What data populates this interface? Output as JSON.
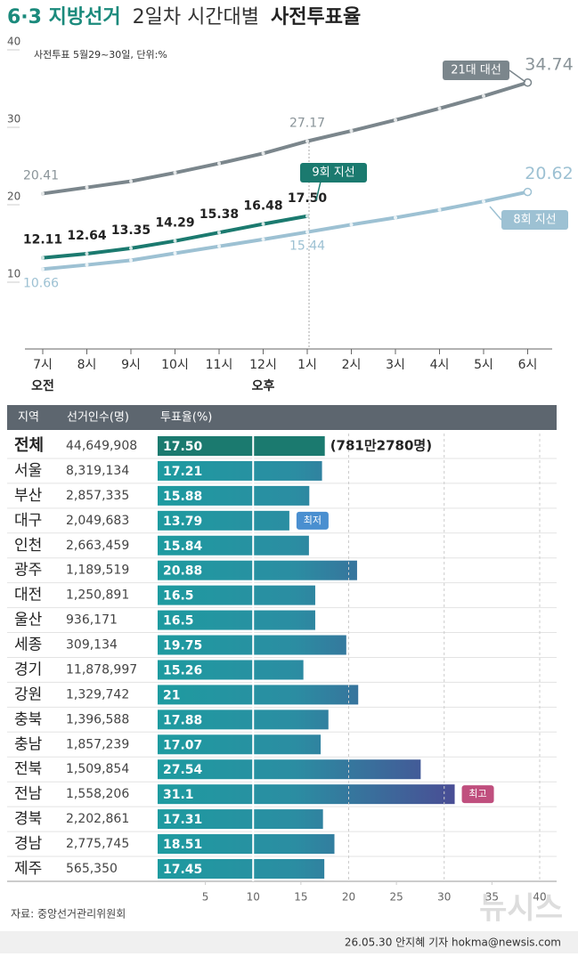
{
  "chart_data": [
    {
      "type": "line",
      "title": [
        "6·3 지방선거",
        "2일차 시간대별",
        "사전투표율"
      ],
      "subtitle": "사전투표 5월29~30일, 단위:%",
      "categories": [
        "7시",
        "8시",
        "9시",
        "10시",
        "11시",
        "12시",
        "1시",
        "2시",
        "3시",
        "4시",
        "5시",
        "6시"
      ],
      "category_sublabels": [
        "오전",
        null,
        null,
        null,
        null,
        "오후",
        null,
        null,
        null,
        null,
        null,
        null
      ],
      "ylim": [
        0,
        40
      ],
      "yticks": [
        10,
        20,
        30,
        40
      ],
      "grid": false,
      "series": [
        {
          "name": "21대 대선",
          "color": "#7b868c",
          "values": [
            20.41,
            21.2,
            22.0,
            23.1,
            24.3,
            25.6,
            27.17,
            28.5,
            29.9,
            31.4,
            33.0,
            34.74
          ],
          "value_labels": [
            "20.41",
            null,
            null,
            null,
            null,
            null,
            "27.17",
            null,
            null,
            null,
            null,
            "34.74"
          ]
        },
        {
          "name": "9회 지선",
          "color": "#1b7a6f",
          "values": [
            12.11,
            12.64,
            13.35,
            14.29,
            15.38,
            16.48,
            17.5,
            null,
            null,
            null,
            null,
            null
          ],
          "value_labels": [
            "12.11",
            "12.64",
            "13.35",
            "14.29",
            "15.38",
            "16.48",
            "17.50",
            null,
            null,
            null,
            null,
            null
          ]
        },
        {
          "name": "8회 지선",
          "color": "#9dc1d3",
          "values": [
            10.66,
            11.2,
            11.8,
            12.7,
            13.6,
            14.5,
            15.44,
            16.4,
            17.3,
            18.3,
            19.4,
            20.62
          ],
          "value_labels": [
            "10.66",
            null,
            null,
            null,
            null,
            null,
            "15.44",
            null,
            null,
            null,
            null,
            "20.62"
          ]
        }
      ]
    },
    {
      "type": "bar",
      "headers": [
        "지역",
        "선거인수(명)",
        "투표율(%)"
      ],
      "categories": [
        "전체",
        "서울",
        "부산",
        "대구",
        "인천",
        "광주",
        "대전",
        "울산",
        "세종",
        "경기",
        "강원",
        "충북",
        "충남",
        "전북",
        "전남",
        "경북",
        "경남",
        "제주"
      ],
      "voters": [
        "44,649,908",
        "8,319,134",
        "2,857,335",
        "2,049,683",
        "2,663,459",
        "1,189,519",
        "1,250,891",
        "936,171",
        "309,134",
        "11,878,997",
        "1,329,742",
        "1,396,588",
        "1,857,239",
        "1,509,854",
        "1,558,206",
        "2,202,861",
        "2,775,745",
        "565,350"
      ],
      "values": [
        17.5,
        17.21,
        15.88,
        13.79,
        15.84,
        20.88,
        16.5,
        16.5,
        19.75,
        15.26,
        21,
        17.88,
        17.07,
        27.54,
        31.1,
        17.31,
        18.51,
        17.45
      ],
      "value_labels": [
        "17.50",
        "17.21",
        "15.88",
        "13.79",
        "15.84",
        "20.88",
        "16.5",
        "16.5",
        "19.75",
        "15.26",
        "21",
        "17.88",
        "17.07",
        "27.54",
        "31.1",
        "17.31",
        "18.51",
        "17.45"
      ],
      "annotations": [
        {
          "index": 0,
          "text": "(781만2780명)"
        },
        {
          "index": 3,
          "text": "최저",
          "color": "#4a8fd0"
        },
        {
          "index": 14,
          "text": "최고",
          "color": "#c04f7e"
        }
      ],
      "xlim": [
        0,
        40
      ],
      "xticks": [
        5,
        10,
        15,
        20,
        25,
        30,
        35,
        40
      ],
      "source": "자료: 중앙선거관리위원회",
      "credit": "26.05.30 안지혜 기자 hokma@newsis.com",
      "watermark": "뉴시스"
    }
  ]
}
